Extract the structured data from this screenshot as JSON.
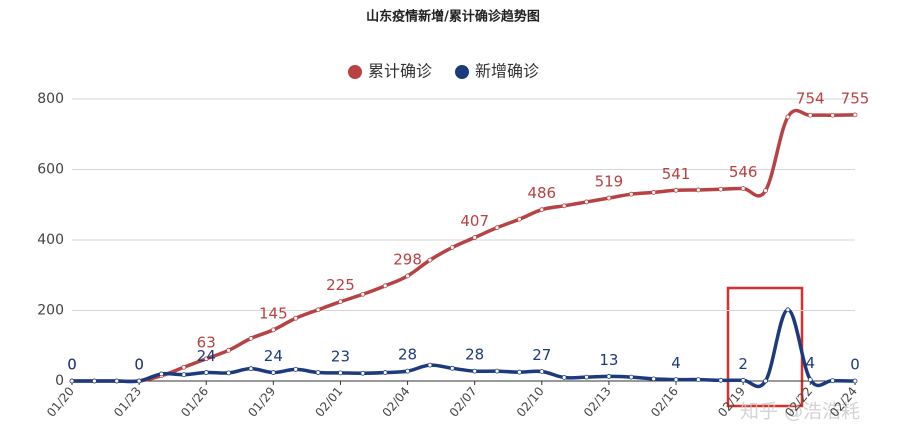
{
  "chart_data": {
    "type": "line",
    "title": "山东疫情新增/累计确诊趋势图",
    "categories": [
      "01/20",
      null,
      null,
      "01/23",
      null,
      null,
      "01/26",
      null,
      null,
      "01/29",
      null,
      null,
      "02/01",
      null,
      null,
      "02/04",
      null,
      null,
      "02/07",
      null,
      null,
      "02/10",
      null,
      null,
      "02/13",
      null,
      null,
      "02/16",
      null,
      null,
      "02/19",
      null,
      null,
      "02/22",
      null,
      "02/24"
    ],
    "series": [
      {
        "name": "累计确诊",
        "color": "#b84143",
        "values": [
          0,
          0,
          0,
          0,
          15,
          39,
          63,
          87,
          121,
          145,
          178,
          202,
          225,
          246,
          270,
          298,
          343,
          379,
          407,
          435,
          459,
          486,
          497,
          508,
          519,
          530,
          535,
          541,
          542,
          544,
          546,
          540,
          749,
          754,
          754,
          755
        ]
      },
      {
        "name": "新增确诊",
        "color": "#1d3a7f",
        "values": [
          0,
          0,
          0,
          0,
          20,
          18,
          24,
          23,
          35,
          24,
          33,
          24,
          23,
          22,
          24,
          28,
          45,
          36,
          28,
          28,
          25,
          27,
          10,
          11,
          13,
          11,
          6,
          4,
          4,
          2,
          2,
          0,
          202,
          4,
          1,
          0
        ]
      }
    ],
    "ylim": [
      0,
      800
    ],
    "yticks": [
      0,
      200,
      400,
      600,
      800
    ],
    "grid": true,
    "legend": "top",
    "watermark": "知乎 @浩浩耗"
  }
}
